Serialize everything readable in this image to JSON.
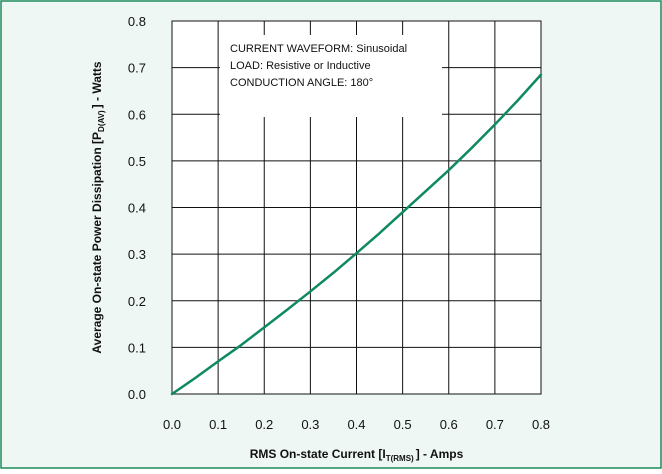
{
  "colors": {
    "panel_background": "#eef7f3",
    "panel_border": "#1f8a5a",
    "plot_background": "#ffffff",
    "grid": "#111111",
    "curve": "#0f8a5f",
    "text": "#111111"
  },
  "chart_data": {
    "type": "line",
    "x_ticks": [
      "0.0",
      "0.1",
      "0.2",
      "0.3",
      "0.4",
      "0.5",
      "0.6",
      "0.7",
      "0.8"
    ],
    "y_ticks": [
      "0.0",
      "0.1",
      "0.2",
      "0.3",
      "0.4",
      "0.5",
      "0.6",
      "0.7",
      "0.8"
    ],
    "xlim": [
      0,
      0.8
    ],
    "ylim": [
      0,
      0.8
    ],
    "grid": true,
    "xlabel": {
      "main": "RMS On-state Current [I",
      "sub": "T(RMS)",
      "suffix": "] - Amps"
    },
    "ylabel": {
      "main": "Average On-state Power Dissipation [P",
      "sub": "D(AV)",
      "suffix": "] - Watts"
    },
    "annotation": [
      "CURRENT WAVEFORM: Sinusoidal",
      "LOAD: Resistive or Inductive",
      "CONDUCTION ANGLE: 180°"
    ],
    "series": [
      {
        "x": [
          0.0,
          0.05,
          0.1,
          0.15,
          0.2,
          0.25,
          0.3,
          0.35,
          0.4,
          0.45,
          0.5,
          0.55,
          0.6,
          0.65,
          0.7,
          0.75,
          0.8
        ],
        "values": [
          0.0,
          0.034,
          0.07,
          0.105,
          0.143,
          0.181,
          0.22,
          0.26,
          0.302,
          0.345,
          0.39,
          0.435,
          0.48,
          0.528,
          0.578,
          0.63,
          0.685
        ]
      }
    ]
  }
}
